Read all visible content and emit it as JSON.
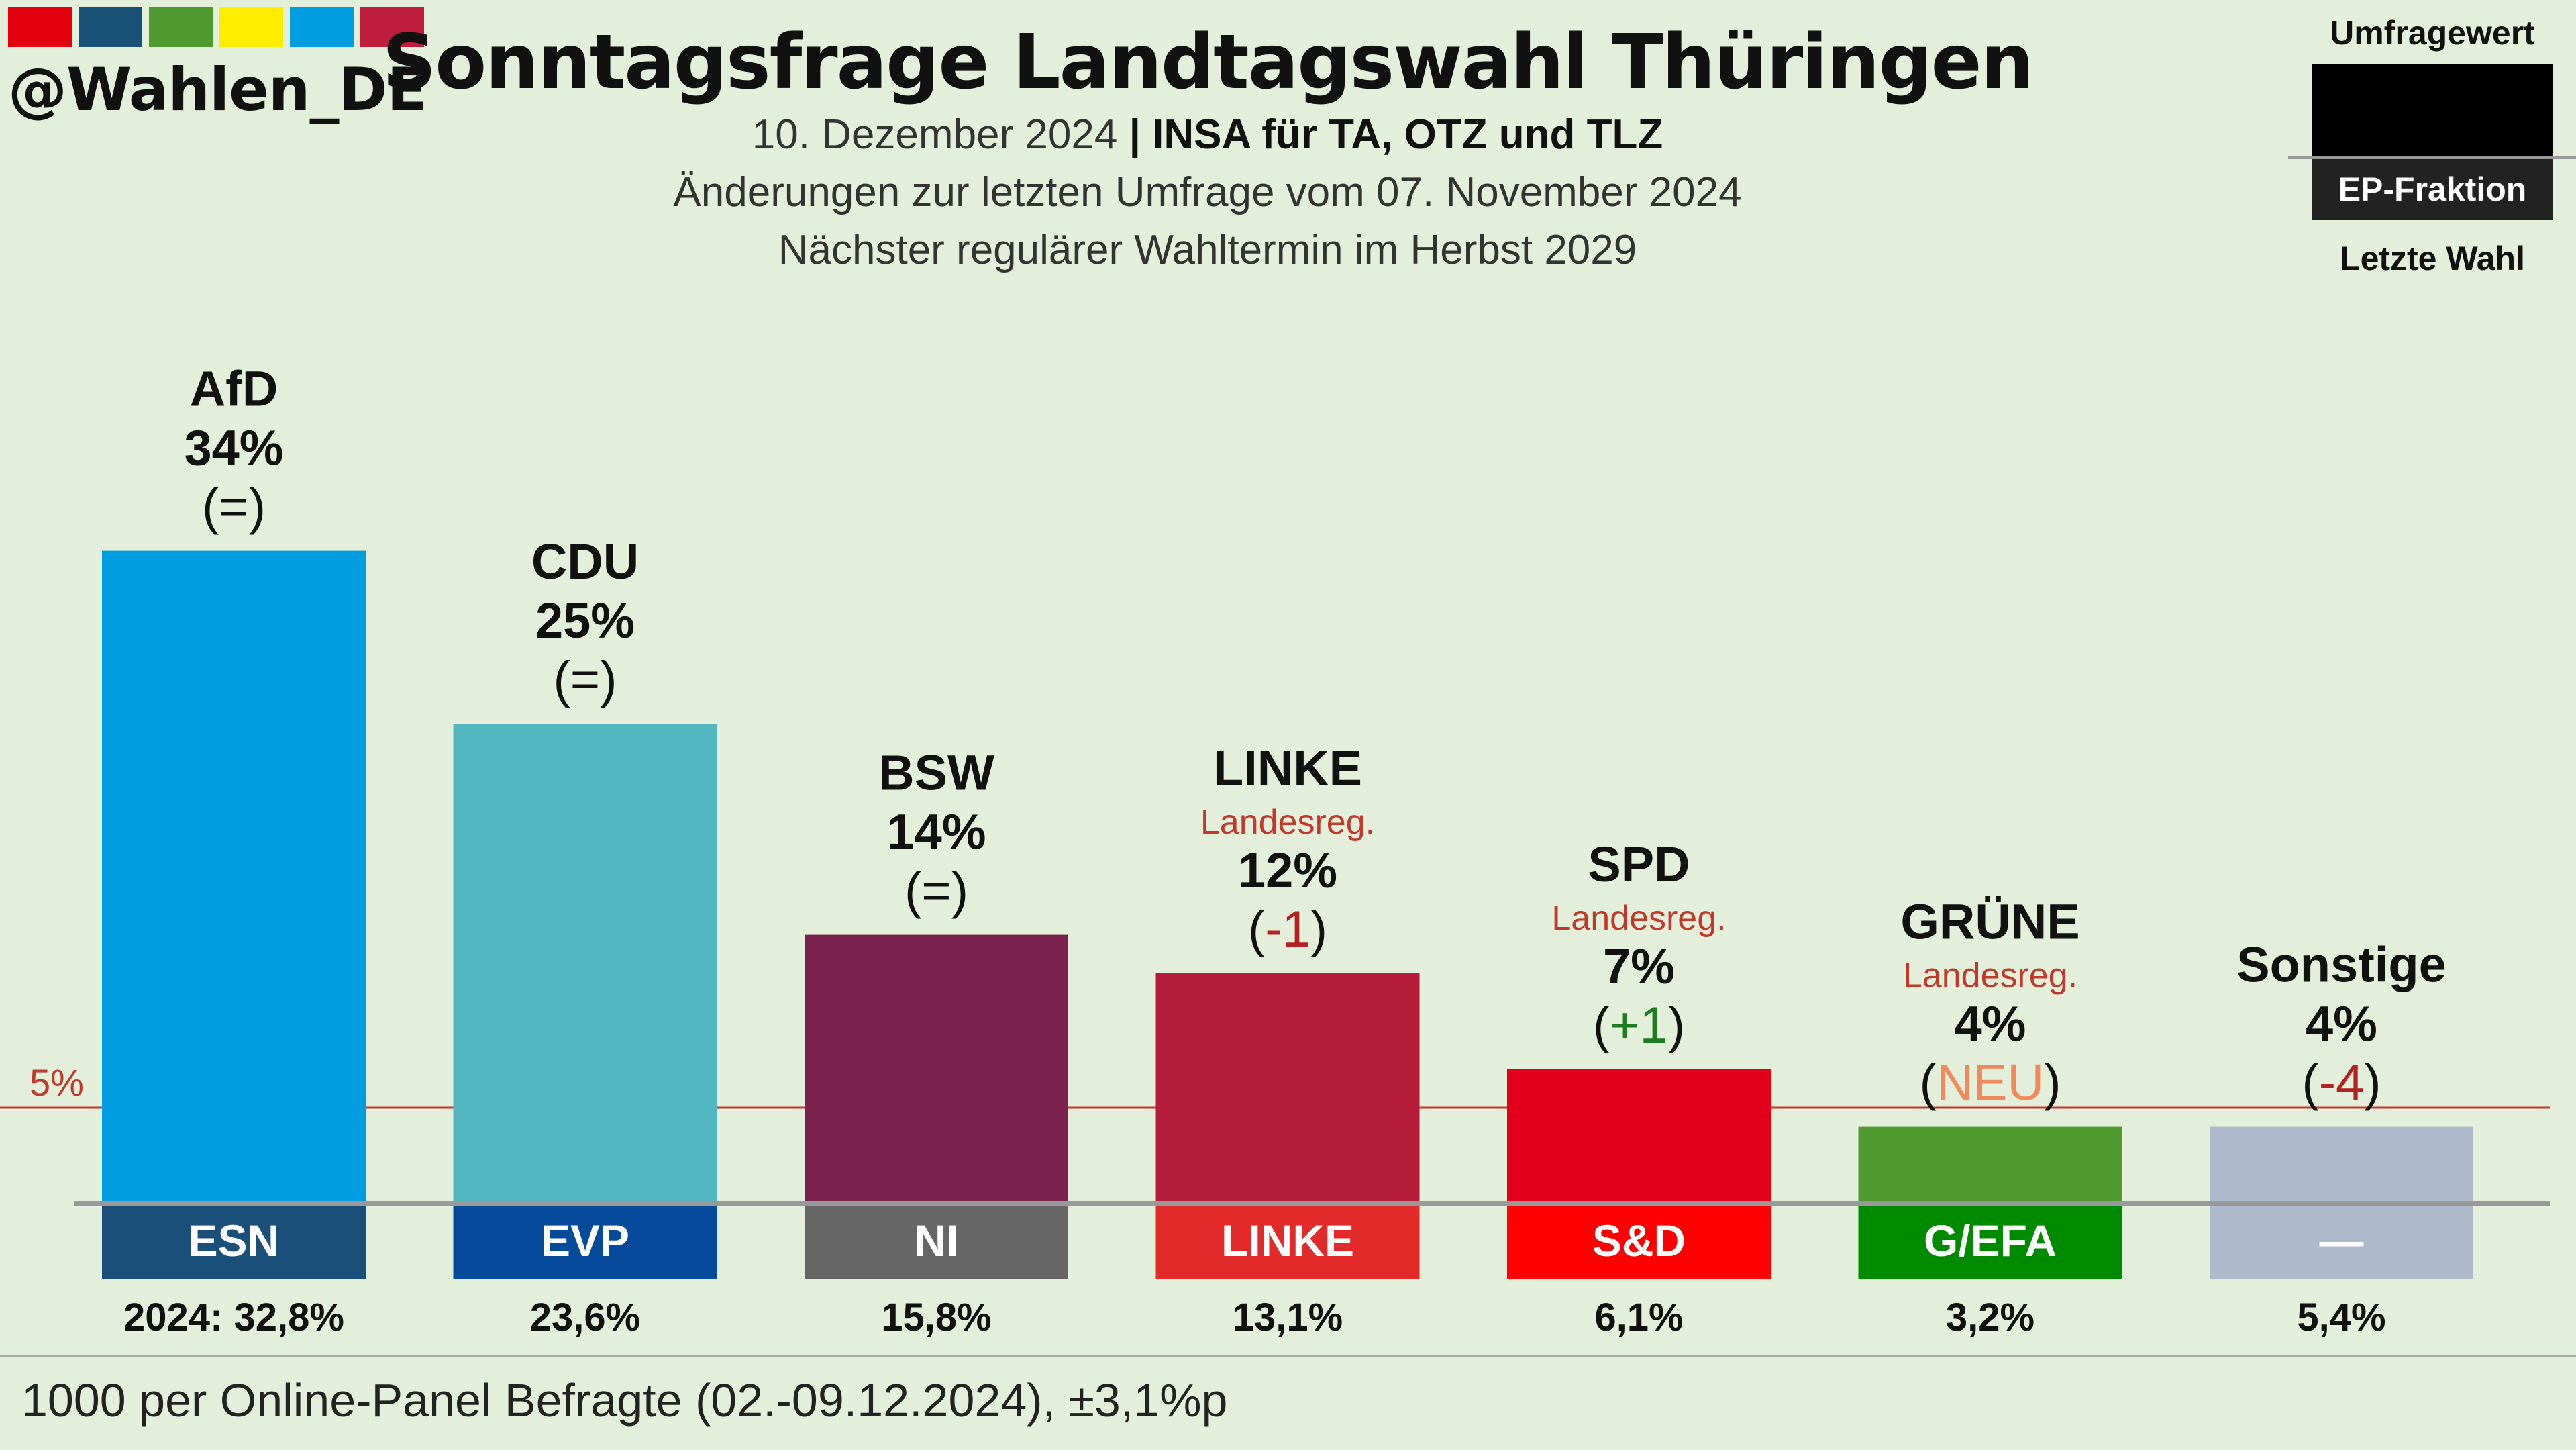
{
  "brand": {
    "handle": "@Wahlen_DE",
    "logo_colors": [
      "#e3000f",
      "#1a5176",
      "#4f9a2f",
      "#ffed00",
      "#009ee0",
      "#be1e3c"
    ]
  },
  "header": {
    "title": "Sonntagsfrage Landtagswahl Thüringen",
    "date": "10. Dezember 2024",
    "separator": "|",
    "institute": "INSA für TA, OTZ und TLZ",
    "line2": "Änderungen zur letzten Umfrage vom 07. November 2024",
    "line3": "Nächster regulärer Wahltermin im Herbst 2029"
  },
  "legend": {
    "top": "Umfragewert",
    "middle": "EP-Fraktion",
    "bottom": "Letzte Wahl"
  },
  "footer": {
    "note": "1000 per Online-Panel Befragte (02.-09.12.2024), ±3,1%p"
  },
  "chart_data": {
    "type": "bar",
    "categories": [
      "AfD",
      "CDU",
      "BSW",
      "LINKE",
      "SPD",
      "GRÜNE",
      "Sonstige"
    ],
    "values": [
      34,
      25,
      14,
      12,
      7,
      4,
      4
    ],
    "value_labels": [
      "34%",
      "25%",
      "14%",
      "12%",
      "7%",
      "4%",
      "4%"
    ],
    "changes": [
      "=",
      "=",
      "=",
      "-1",
      "+1",
      "NEU",
      "-4"
    ],
    "change_colors": [
      "#111111",
      "#111111",
      "#111111",
      "#b22222",
      "#1e7b1e",
      "#f08a5d",
      "#b22222"
    ],
    "subtitles": [
      "",
      "",
      "",
      "Landesreg.",
      "Landesreg.",
      "Landesreg.",
      ""
    ],
    "bar_colors": [
      "#009ee0",
      "#52b7c1",
      "#7a214d",
      "#b41c3a",
      "#e3001b",
      "#4f9a2f",
      "#aeb9cc"
    ],
    "ep_groups": [
      "ESN",
      "EVP",
      "NI",
      "LINKE",
      "S&D",
      "G/EFA",
      "—"
    ],
    "ep_colors": [
      "#1a4f7a",
      "#064a9c",
      "#666666",
      "#e22a2a",
      "#ff0000",
      "#008a00",
      "#aeb9cc"
    ],
    "last_election": [
      "2024: 32,8%",
      "23,6%",
      "15,8%",
      "13,1%",
      "6,1%",
      "3,2%",
      "5,4%"
    ],
    "threshold": 5,
    "threshold_label": "5%",
    "threshold_color": "#c0392b",
    "subtitle_color": "#c0392b"
  }
}
